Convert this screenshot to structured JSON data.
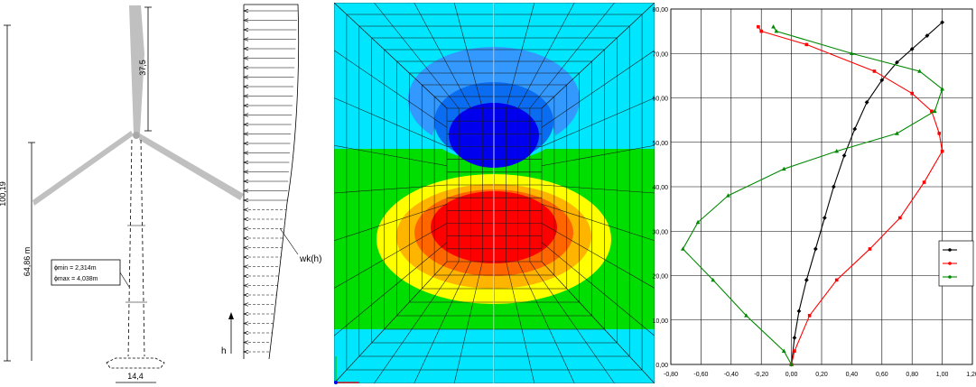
{
  "turbine": {
    "dim_total": "100,19",
    "dim_hub": "64,86 m",
    "dim_blade": "37,5",
    "dim_base": "14,4",
    "legend": [
      "ϕmin = 2,314m",
      "ϕmax = 4,038m"
    ]
  },
  "wind_profile": {
    "label": "wk(h)",
    "axis": "h"
  },
  "fem": {
    "colors": [
      "#00e6ff",
      "#00dd00",
      "#ffff00",
      "#ffb400",
      "#ff6600",
      "#ff0000",
      "#0000ff",
      "#4488ff"
    ]
  },
  "chart_data": {
    "type": "line",
    "x_ticks": [
      "-0,80",
      "-0,60",
      "-0,40",
      "-0,20",
      "0,00",
      "0,20",
      "0,40",
      "0,60",
      "0,80",
      "1,00",
      "1,20"
    ],
    "y_ticks": [
      "0,00",
      "10,00",
      "20,00",
      "30,00",
      "40,00",
      "50,00",
      "60,00",
      "70,00",
      "80,00"
    ],
    "xlim": [
      -0.8,
      1.2
    ],
    "ylim": [
      0,
      80
    ],
    "grid": true,
    "legend_position": "right",
    "series": [
      {
        "color": "#000000",
        "marker": "diamond",
        "points": [
          [
            0,
            0
          ],
          [
            0.02,
            6
          ],
          [
            0.05,
            12
          ],
          [
            0.1,
            19
          ],
          [
            0.16,
            26
          ],
          [
            0.22,
            33
          ],
          [
            0.28,
            40
          ],
          [
            0.35,
            47
          ],
          [
            0.42,
            53
          ],
          [
            0.5,
            59
          ],
          [
            0.6,
            64
          ],
          [
            0.7,
            68
          ],
          [
            0.8,
            71
          ],
          [
            0.9,
            74
          ],
          [
            1.0,
            77
          ]
        ]
      },
      {
        "color": "#ff0000",
        "marker": "square",
        "points": [
          [
            0,
            0
          ],
          [
            0.02,
            3
          ],
          [
            0.12,
            11
          ],
          [
            0.3,
            19
          ],
          [
            0.52,
            26
          ],
          [
            0.72,
            33
          ],
          [
            0.88,
            41
          ],
          [
            1.0,
            48
          ],
          [
            0.98,
            52
          ],
          [
            0.93,
            57
          ],
          [
            0.8,
            61
          ],
          [
            0.55,
            66
          ],
          [
            0.1,
            72
          ],
          [
            -0.2,
            75
          ],
          [
            -0.22,
            76
          ]
        ]
      },
      {
        "color": "#008800",
        "marker": "triangle",
        "points": [
          [
            0,
            0
          ],
          [
            -0.05,
            3
          ],
          [
            -0.3,
            11
          ],
          [
            -0.52,
            19
          ],
          [
            -0.72,
            26
          ],
          [
            -0.62,
            32
          ],
          [
            -0.42,
            38
          ],
          [
            -0.05,
            44
          ],
          [
            0.3,
            48
          ],
          [
            0.7,
            52
          ],
          [
            0.95,
            57
          ],
          [
            1.0,
            62
          ],
          [
            0.85,
            66
          ],
          [
            0.4,
            70
          ],
          [
            -0.1,
            75
          ],
          [
            -0.12,
            76
          ]
        ]
      }
    ]
  }
}
